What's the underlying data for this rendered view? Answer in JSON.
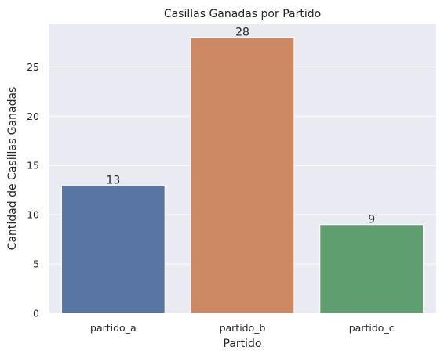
{
  "chart_data": {
    "type": "bar",
    "title": "Casillas Ganadas por Partido",
    "xlabel": "Partido",
    "ylabel": "Cantidad de Casillas Ganadas",
    "categories": [
      "partido_a",
      "partido_b",
      "partido_c"
    ],
    "values": [
      13,
      28,
      9
    ],
    "data_labels": [
      "13",
      "28",
      "9"
    ],
    "colors": [
      "#5875a4",
      "#cc8963",
      "#5f9e6e"
    ],
    "ylim": [
      0,
      29.4
    ],
    "yticks": [
      0,
      5,
      10,
      15,
      20,
      25
    ],
    "ytick_labels": [
      "0",
      "5",
      "10",
      "15",
      "20",
      "25"
    ],
    "grid": true,
    "background": "#eaeaf2"
  }
}
